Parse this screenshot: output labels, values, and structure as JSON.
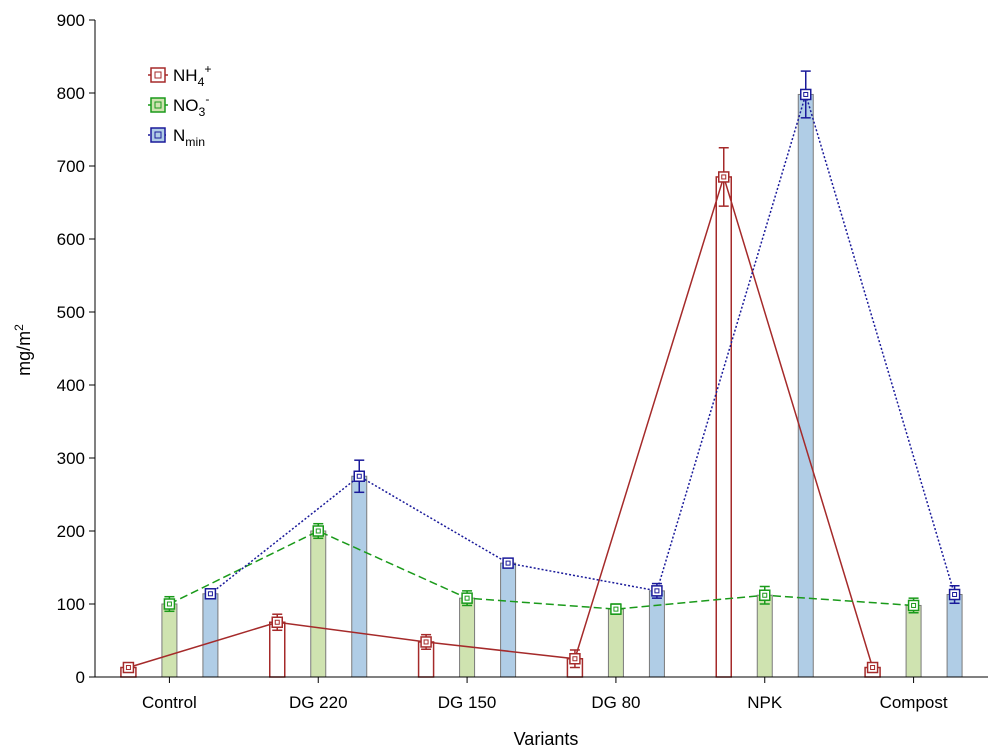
{
  "chart_data": {
    "type": "bar",
    "title": "",
    "xlabel": "Variants",
    "ylabel": {
      "base": "mg/m",
      "sup": "2"
    },
    "ylim": [
      0,
      900
    ],
    "yticks": [
      0,
      100,
      200,
      300,
      400,
      500,
      600,
      700,
      800,
      900
    ],
    "categories": [
      "Control",
      "DG 220",
      "DG 150",
      "DG 80",
      "NPK",
      "Compost"
    ],
    "grid": false,
    "legend_position": "top-left",
    "series": [
      {
        "id": "nh4",
        "label": {
          "base": "NH",
          "sub": "4",
          "sup": "+"
        },
        "values": [
          13,
          75,
          48,
          25,
          685,
          13
        ],
        "errors": [
          4,
          11,
          10,
          12,
          40,
          4
        ],
        "color": "#a52a2a",
        "fill": "#ffffff",
        "line_style": "solid"
      },
      {
        "id": "no3",
        "label": {
          "base": "NO",
          "sub": "3",
          "sup": "-"
        },
        "values": [
          100,
          200,
          108,
          93,
          112,
          98
        ],
        "errors": [
          10,
          10,
          10,
          7,
          12,
          10
        ],
        "color": "#1a9a1a",
        "fill": "#cfe3b0",
        "line_style": "dashed"
      },
      {
        "id": "nmin",
        "label": {
          "base": "N",
          "sub": "min",
          "sup": ""
        },
        "values": [
          114,
          275,
          156,
          118,
          798,
          113
        ],
        "errors": [
          5,
          22,
          5,
          10,
          32,
          12
        ],
        "color": "#1a1a9a",
        "fill": "#b0cde6",
        "line_style": "dotted"
      }
    ]
  }
}
